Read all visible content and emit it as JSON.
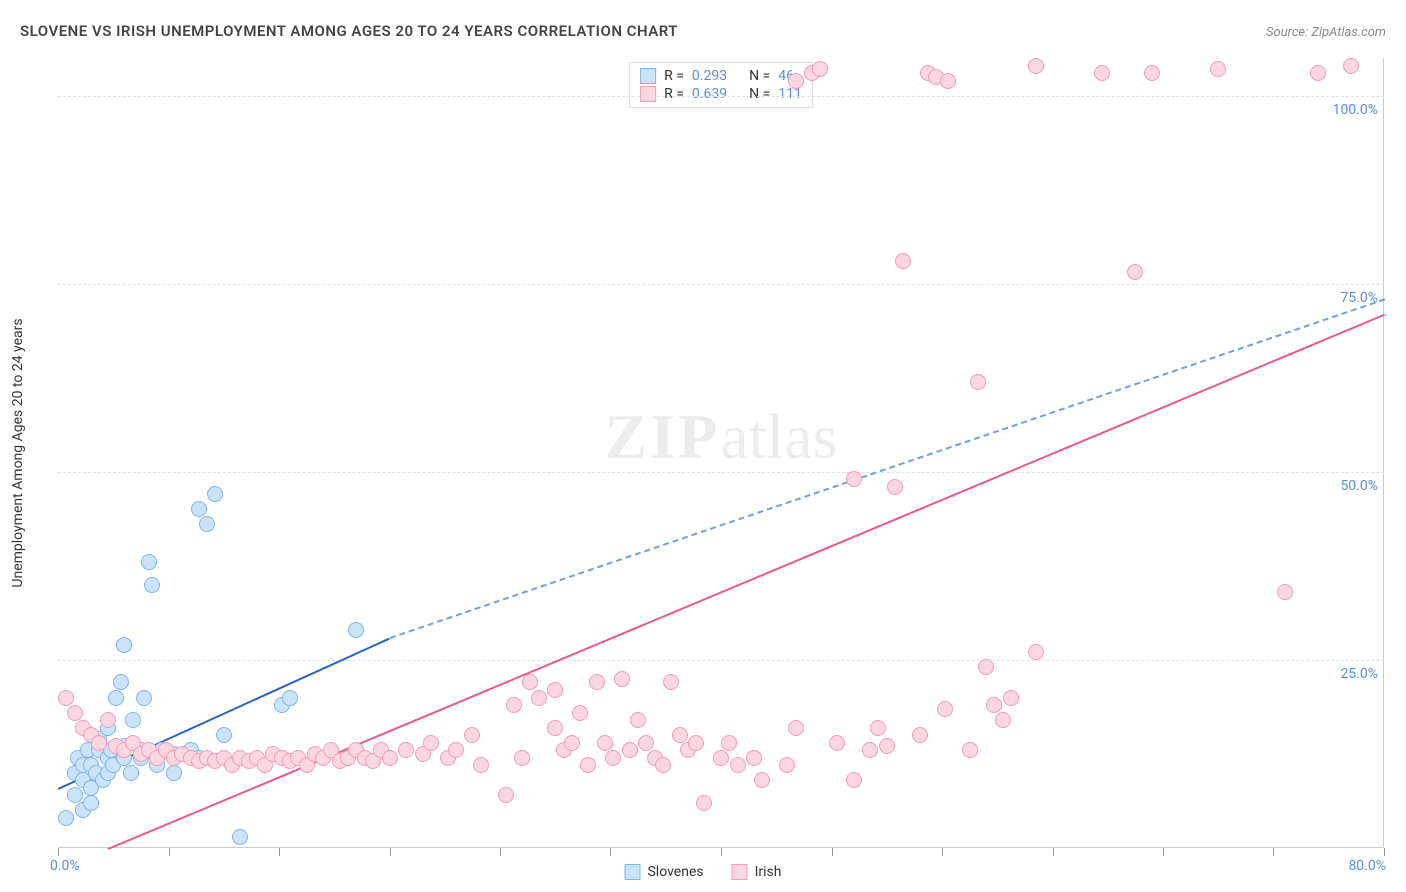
{
  "title": "SLOVENE VS IRISH UNEMPLOYMENT AMONG AGES 20 TO 24 YEARS CORRELATION CHART",
  "source_label": "Source: ZipAtlas.com",
  "watermark": {
    "part1": "ZIP",
    "part2": "atlas"
  },
  "y_axis_title": "Unemployment Among Ages 20 to 24 years",
  "chart": {
    "type": "scatter",
    "background_color": "#ffffff",
    "grid_color": "#e0e0e0",
    "axis_label_color": "#5a8fd8",
    "xlim": [
      0,
      80
    ],
    "ylim": [
      0,
      105
    ],
    "x_left_label": "0.0%",
    "x_right_label": "80.0%",
    "x_ticks": [
      0,
      6.67,
      13.33,
      20,
      26.67,
      33.33,
      40,
      46.67,
      53.33,
      60,
      66.67,
      73.33,
      80
    ],
    "y_gridlines": [
      {
        "v": 25,
        "label": "25.0%"
      },
      {
        "v": 50,
        "label": "50.0%"
      },
      {
        "v": 75,
        "label": "75.0%"
      },
      {
        "v": 100,
        "label": "100.0%"
      }
    ],
    "marker_radius": 8,
    "series": [
      {
        "name": "Slovenes",
        "fill": "#cbe3f8",
        "stroke": "#7fb5e8",
        "r_value": "0.293",
        "n_value": "46",
        "trend": {
          "solid": {
            "x1": 0,
            "y1": 8,
            "x2": 20,
            "y2": 28,
            "color": "#2962c7"
          },
          "dashed": {
            "x1": 20,
            "y1": 28,
            "x2": 80,
            "y2": 73,
            "color": "#6fa0db"
          }
        },
        "points": [
          [
            0.5,
            4
          ],
          [
            1,
            7
          ],
          [
            1,
            10
          ],
          [
            1.2,
            12
          ],
          [
            1.5,
            5
          ],
          [
            1.5,
            9
          ],
          [
            1.5,
            11
          ],
          [
            1.8,
            13
          ],
          [
            2,
            6
          ],
          [
            2,
            8
          ],
          [
            2,
            11
          ],
          [
            2.3,
            10
          ],
          [
            2.5,
            13
          ],
          [
            2.5,
            14.5
          ],
          [
            2.7,
            9
          ],
          [
            3,
            10
          ],
          [
            3,
            12
          ],
          [
            3,
            16
          ],
          [
            3.2,
            13
          ],
          [
            3.3,
            11
          ],
          [
            3.5,
            20
          ],
          [
            3.8,
            22
          ],
          [
            4,
            12
          ],
          [
            4,
            13.5
          ],
          [
            4,
            27
          ],
          [
            4.4,
            10
          ],
          [
            4.5,
            17
          ],
          [
            5,
            12
          ],
          [
            5,
            13
          ],
          [
            5.2,
            20
          ],
          [
            5.5,
            38
          ],
          [
            5.7,
            35
          ],
          [
            6,
            11
          ],
          [
            6.3,
            13
          ],
          [
            7,
            12.5
          ],
          [
            7,
            10
          ],
          [
            8,
            13
          ],
          [
            8.5,
            12
          ],
          [
            8.5,
            45
          ],
          [
            9,
            43
          ],
          [
            9.5,
            47
          ],
          [
            10,
            15
          ],
          [
            11,
            1.5
          ],
          [
            13.5,
            19
          ],
          [
            14,
            20
          ],
          [
            18,
            29
          ]
        ]
      },
      {
        "name": "Irish",
        "fill": "#fcd6e1",
        "stroke": "#f49cb6",
        "r_value": "0.639",
        "n_value": "111",
        "trend": {
          "solid": {
            "x1": 3,
            "y1": 0,
            "x2": 80,
            "y2": 71,
            "color": "#e85a87"
          }
        },
        "points": [
          [
            0.5,
            20
          ],
          [
            1,
            18
          ],
          [
            1.5,
            16
          ],
          [
            2,
            15
          ],
          [
            2.5,
            14
          ],
          [
            3,
            17
          ],
          [
            3.5,
            13.5
          ],
          [
            4,
            13
          ],
          [
            4.5,
            14
          ],
          [
            5,
            12.5
          ],
          [
            5.5,
            13
          ],
          [
            6,
            12
          ],
          [
            6.5,
            13
          ],
          [
            7,
            12
          ],
          [
            7.5,
            12.5
          ],
          [
            8,
            12
          ],
          [
            8.5,
            11.5
          ],
          [
            9,
            12
          ],
          [
            9.5,
            11.5
          ],
          [
            10,
            12
          ],
          [
            10.5,
            11
          ],
          [
            11,
            12
          ],
          [
            11.5,
            11.5
          ],
          [
            12,
            12
          ],
          [
            12.5,
            11
          ],
          [
            13,
            12.5
          ],
          [
            13.5,
            12
          ],
          [
            14,
            11.5
          ],
          [
            14.5,
            12
          ],
          [
            15,
            11
          ],
          [
            15.5,
            12.5
          ],
          [
            16,
            12
          ],
          [
            16.5,
            13
          ],
          [
            17,
            11.5
          ],
          [
            17.5,
            12
          ],
          [
            18,
            13
          ],
          [
            18.5,
            12
          ],
          [
            19,
            11.5
          ],
          [
            19.5,
            13
          ],
          [
            20,
            12
          ],
          [
            21,
            13
          ],
          [
            22,
            12.5
          ],
          [
            22.5,
            14
          ],
          [
            23.5,
            12
          ],
          [
            24,
            13
          ],
          [
            25,
            15
          ],
          [
            25.5,
            11
          ],
          [
            27,
            7
          ],
          [
            27.5,
            19
          ],
          [
            28,
            12
          ],
          [
            28.5,
            22
          ],
          [
            29,
            20
          ],
          [
            30,
            16
          ],
          [
            30,
            21
          ],
          [
            30.5,
            13
          ],
          [
            31,
            14
          ],
          [
            31.5,
            18
          ],
          [
            32,
            11
          ],
          [
            32.5,
            22
          ],
          [
            33,
            14
          ],
          [
            33.5,
            12
          ],
          [
            34,
            22.5
          ],
          [
            34.5,
            13
          ],
          [
            35,
            17
          ],
          [
            35.5,
            14
          ],
          [
            36,
            12
          ],
          [
            36.5,
            11
          ],
          [
            37,
            22
          ],
          [
            37.5,
            15
          ],
          [
            38,
            13
          ],
          [
            38.5,
            14
          ],
          [
            39,
            6
          ],
          [
            40,
            12
          ],
          [
            40.5,
            14
          ],
          [
            41,
            11
          ],
          [
            42,
            12
          ],
          [
            42.5,
            9
          ],
          [
            44,
            11
          ],
          [
            44.5,
            16
          ],
          [
            44.5,
            102
          ],
          [
            45.5,
            103
          ],
          [
            46,
            103.5
          ],
          [
            47,
            14
          ],
          [
            48,
            9
          ],
          [
            48,
            49
          ],
          [
            49,
            13
          ],
          [
            49.5,
            16
          ],
          [
            50,
            13.5
          ],
          [
            50.5,
            48
          ],
          [
            51,
            78
          ],
          [
            52,
            15
          ],
          [
            52.5,
            103
          ],
          [
            53,
            102.5
          ],
          [
            53.7,
            102
          ],
          [
            53.5,
            18.5
          ],
          [
            55,
            13
          ],
          [
            55.5,
            62
          ],
          [
            56,
            24
          ],
          [
            56.5,
            19
          ],
          [
            57,
            17
          ],
          [
            57.5,
            20
          ],
          [
            59,
            26
          ],
          [
            59,
            104
          ],
          [
            63,
            103
          ],
          [
            65,
            76.5
          ],
          [
            66,
            103
          ],
          [
            70,
            103.5
          ],
          [
            74,
            34
          ],
          [
            76,
            103
          ],
          [
            78,
            104
          ]
        ]
      }
    ]
  },
  "legend_bottom": [
    {
      "label": "Slovenes",
      "fill": "#cbe3f8",
      "stroke": "#7fb5e8"
    },
    {
      "label": "Irish",
      "fill": "#fcd6e1",
      "stroke": "#f49cb6"
    }
  ]
}
